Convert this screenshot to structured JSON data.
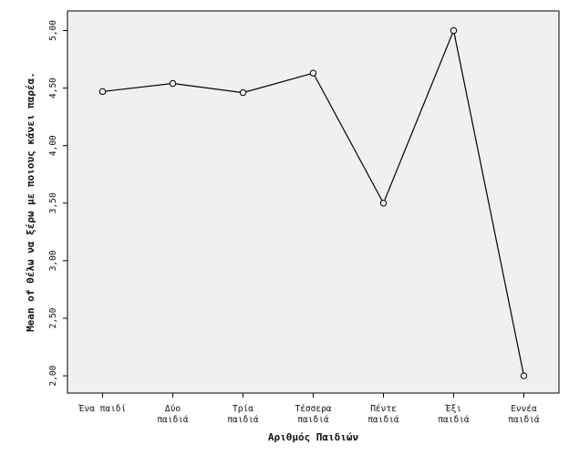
{
  "chart_data": {
    "type": "line",
    "xlabel": "Αριθμός Παιδιών",
    "ylabel": "Mean of Θέλω να ξέρω με ποιους κάνει παρέα.",
    "categories": [
      [
        "Ένα παιδί"
      ],
      [
        "Δύο",
        "παιδιά"
      ],
      [
        "Τρία",
        "παιδιά"
      ],
      [
        "Τέσσερα",
        "παιδιά"
      ],
      [
        "Πέντε",
        "παιδιά"
      ],
      [
        "Έξι",
        "παιδιά"
      ],
      [
        "Εννέα",
        "παιδιά"
      ]
    ],
    "series": [
      {
        "values": [
          4.47,
          4.54,
          4.46,
          4.63,
          3.5,
          5.0,
          2.0
        ]
      }
    ],
    "ylim": [
      1.85,
      5.17
    ],
    "yticks": [
      "2,00",
      "2,50",
      "3,00",
      "3,50",
      "4,00",
      "4,50",
      "5,00"
    ],
    "ytick_values": [
      2.0,
      2.5,
      3.0,
      3.5,
      4.0,
      4.5,
      5.0
    ],
    "grid": false,
    "colors": {
      "plot_bg": "#f0f0f0",
      "line": "#000000"
    }
  }
}
